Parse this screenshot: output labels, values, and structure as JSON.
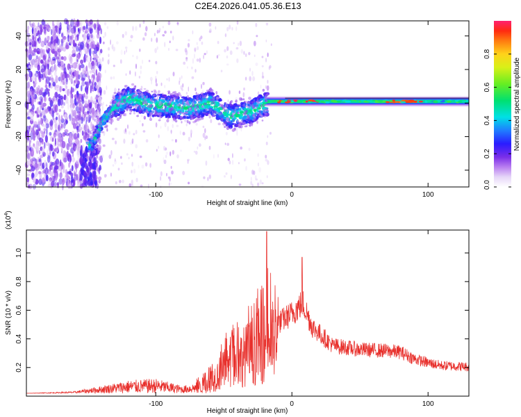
{
  "title": "C2E4.2026.041.05.36.E13",
  "chart_data": [
    {
      "type": "heatmap",
      "xlabel": "Height of straight line (km)",
      "ylabel": "Frequency (Hz)",
      "xlim": [
        -195,
        130
      ],
      "ylim": [
        -50,
        49
      ],
      "x_ticks": [
        -100,
        0,
        100
      ],
      "y_ticks": [
        -40,
        -20,
        0,
        20,
        40
      ],
      "ridge": {
        "description_x": [
          -147,
          -140,
          -130,
          -120,
          -105,
          -90,
          -75,
          -60,
          -45,
          -30,
          -20,
          -10,
          0,
          20,
          60,
          130
        ],
        "description_freq": [
          -25,
          -12,
          -2,
          3,
          -1,
          -2,
          -3,
          0,
          -8,
          -5,
          -1,
          1,
          1,
          1,
          1,
          1
        ]
      },
      "colorbar": {
        "label": "Normalized spectral amplitude",
        "range": [
          0,
          1
        ],
        "ticks": [
          "0.0",
          "0.2",
          "0.4",
          "0.6",
          "0.8"
        ],
        "tick_values": [
          0.0,
          0.2,
          0.4,
          0.6,
          0.8
        ]
      }
    },
    {
      "type": "line",
      "xlabel": "Height of straight line (km)",
      "ylabel": "SNR (10 * v/v)",
      "scale_label": "(x10",
      "scale_exp": "4",
      "scale_close": ")",
      "xlim": [
        -195,
        130
      ],
      "ylim": [
        0,
        1.16
      ],
      "x_ticks": [
        -100,
        0,
        100
      ],
      "y_ticks": [
        0.2,
        0.4,
        0.6,
        0.8,
        1.0
      ],
      "y_tick_labels": [
        "0.2",
        "0.4",
        "0.6",
        "0.8",
        "1.0"
      ],
      "color": "#e8302c",
      "series_envelope": {
        "x": [
          -195,
          -160,
          -140,
          -120,
          -100,
          -80,
          -70,
          -60,
          -50,
          -40,
          -30,
          -20,
          -18,
          -10,
          0,
          8,
          15,
          30,
          50,
          70,
          80,
          90,
          100,
          110,
          130
        ],
        "y": [
          0.02,
          0.03,
          0.06,
          0.09,
          0.1,
          0.06,
          0.08,
          0.16,
          0.28,
          0.38,
          0.48,
          0.58,
          0.62,
          0.55,
          0.62,
          0.7,
          0.52,
          0.38,
          0.35,
          0.34,
          0.33,
          0.28,
          0.25,
          0.23,
          0.22
        ]
      },
      "peaks": [
        {
          "x": -18.5,
          "y": 1.15
        },
        {
          "x": 7.5,
          "y": 0.97
        }
      ]
    }
  ]
}
